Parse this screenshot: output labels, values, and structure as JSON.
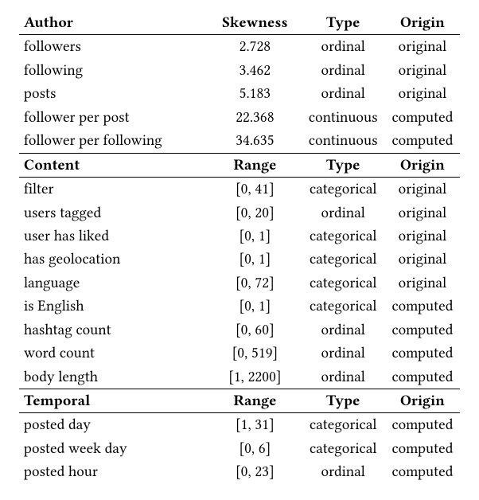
{
  "sections": [
    {
      "header": {
        "c1": "Author",
        "c2": "Skewness",
        "c3": "Type",
        "c4": "Origin"
      },
      "rows": [
        {
          "label": "followers",
          "val": "2.728",
          "type": "ordinal",
          "origin": "original"
        },
        {
          "label": "following",
          "val": "3.462",
          "type": "ordinal",
          "origin": "original"
        },
        {
          "label": "posts",
          "val": "5.183",
          "type": "ordinal",
          "origin": "original"
        },
        {
          "label": "follower per post",
          "val": "22.368",
          "type": "continuous",
          "origin": "computed"
        },
        {
          "label": "follower per following",
          "val": "34.635",
          "type": "continuous",
          "origin": "computed"
        }
      ]
    },
    {
      "header": {
        "c1": "Content",
        "c2": "Range",
        "c3": "Type",
        "c4": "Origin"
      },
      "rows": [
        {
          "label": "filter",
          "val": "[0, 41]",
          "type": "categorical",
          "origin": "original"
        },
        {
          "label": "users tagged",
          "val": "[0, 20]",
          "type": "ordinal",
          "origin": "original"
        },
        {
          "label": "user has liked",
          "val": "[0, 1]",
          "type": "categorical",
          "origin": "original"
        },
        {
          "label": "has geolocation",
          "val": "[0, 1]",
          "type": "categorical",
          "origin": "original"
        },
        {
          "label": "language",
          "val": "[0, 72]",
          "type": "categorical",
          "origin": "original"
        },
        {
          "label": "is English",
          "val": "[0, 1]",
          "type": "categorical",
          "origin": "computed"
        },
        {
          "label": "hashtag count",
          "val": "[0, 60]",
          "type": "ordinal",
          "origin": "computed"
        },
        {
          "label": "word count",
          "val": "[0, 519]",
          "type": "ordinal",
          "origin": "computed"
        },
        {
          "label": "body length",
          "val": "[1, 2200]",
          "type": "ordinal",
          "origin": "computed"
        }
      ]
    },
    {
      "header": {
        "c1": "Temporal",
        "c2": "Range",
        "c3": "Type",
        "c4": "Origin"
      },
      "rows": [
        {
          "label": "posted day",
          "val": "[1, 31]",
          "type": "categorical",
          "origin": "computed"
        },
        {
          "label": "posted week day",
          "val": "[0, 6]",
          "type": "categorical",
          "origin": "computed"
        },
        {
          "label": "posted hour",
          "val": "[0, 23]",
          "type": "ordinal",
          "origin": "computed"
        }
      ]
    }
  ]
}
